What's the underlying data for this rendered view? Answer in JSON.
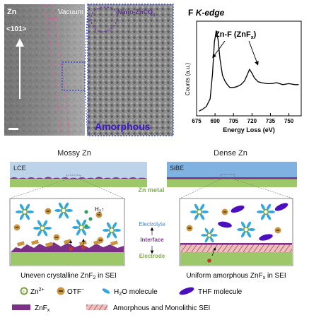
{
  "colors": {
    "electrolyte_lce": "#bcd3ea",
    "electrolyte_sibe": "#7fb1e1",
    "zn_metal": "#9cc86a",
    "sei_line": "#7b2f86",
    "interface_label": "#7f3f98",
    "electrolyte_label": "#4a84c4",
    "electrode_label": "#7fb24a",
    "h2o": "#2fa9e0",
    "thf": "#4b0fbf",
    "zn_ion": "#7ba33b",
    "otf": "#c9963f",
    "amorphous_label": "#3d17c8",
    "zncp_label": "#5a2a9a"
  },
  "panel_tem": {
    "zn_label": "Zn",
    "direction_label": "<101>",
    "sei_label": "SEI",
    "vacuum_label": "Vacuum"
  },
  "panel_zoom": {
    "nano_label": "Nano-ZnCO",
    "nano_subscript": "3",
    "amorphous_label": "Amorphous"
  },
  "panel_eels": {
    "title_letter": "F",
    "title_edge": "K-edge",
    "peak_label": "Zn-F (ZnF",
    "peak_label_sub": "x",
    "peak_label_end": ")",
    "ylabel": "Counts (a.u.)",
    "xlabel": "Energy Loss (eV)",
    "x_ticks": [
      "675",
      "690",
      "705",
      "720",
      "735",
      "750"
    ]
  },
  "chart_data": {
    "type": "line",
    "xlabel": "Energy Loss (eV)",
    "ylabel": "Counts (a.u.)",
    "xlim": [
      675,
      760
    ],
    "grid": false,
    "x": [
      677,
      680,
      683,
      686,
      688,
      689.5,
      691,
      692.5,
      694,
      696,
      698,
      700,
      702,
      705,
      708,
      711,
      714,
      716,
      718,
      720,
      722,
      725,
      728,
      732,
      736,
      740,
      745,
      750,
      755,
      758
    ],
    "y": [
      0.05,
      0.07,
      0.1,
      0.18,
      0.45,
      0.78,
      0.9,
      0.8,
      0.6,
      0.43,
      0.37,
      0.33,
      0.3,
      0.3,
      0.31,
      0.33,
      0.37,
      0.43,
      0.49,
      0.45,
      0.4,
      0.36,
      0.35,
      0.34,
      0.34,
      0.35,
      0.33,
      0.34,
      0.33,
      0.33
    ]
  },
  "schematic": {
    "left_title": "Mossy Zn",
    "right_title": "Dense Zn",
    "left_tag": "LCE",
    "right_tag": "SiBE",
    "zn_metal_label": "Zn metal",
    "h2_label": "H",
    "h2_sub": "2",
    "h2_arrow": "↑",
    "mid_electrolyte": "Electrolyte",
    "mid_interface": "Interface",
    "mid_electrode": "Electrode",
    "left_caption": "Uneven crystalline ZnF",
    "left_caption_sub": "2",
    "left_caption_end": " in SEI",
    "right_caption": "Uniform amorphous ZnF",
    "right_caption_sub": "x",
    "right_caption_end": " in SEI"
  },
  "legend": {
    "zn_ion": "Zn",
    "zn_ion_sup": "2+",
    "otf": "OTF",
    "otf_sup": "−",
    "h2o": "H",
    "h2o_sub": "2",
    "h2o_end": "O molecule",
    "thf": "THF molecule",
    "znfx": "ZnF",
    "znfx_sub": "x",
    "sei": "Amorphous and Monolithic SEI"
  }
}
